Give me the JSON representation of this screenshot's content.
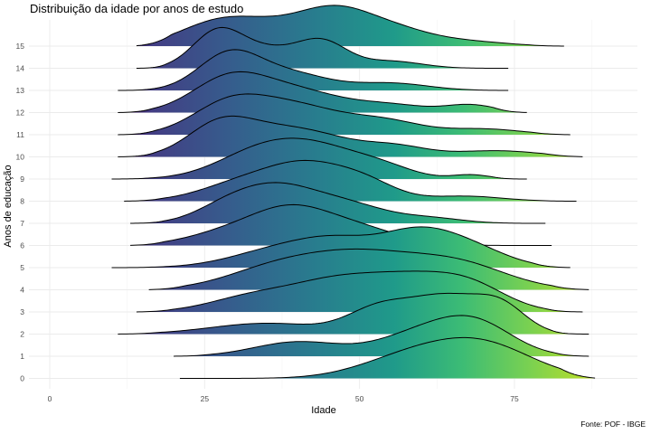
{
  "chart_data": {
    "type": "ridgeline",
    "title": "Distribuição da idade por anos de estudo",
    "xlabel": "Idade",
    "ylabel": "Anos de educação",
    "caption": "Fonte: POF - IBGE",
    "xlim": [
      -4,
      89
    ],
    "x_ticks": [
      0,
      25,
      50,
      75
    ],
    "colormap": "viridis",
    "legend": "none",
    "grid": true,
    "ridges": [
      {
        "category": "0",
        "min": 21,
        "max": 88,
        "peaks": [
          [
            58,
            8,
            0.62
          ],
          [
            70,
            8,
            1.0
          ]
        ]
      },
      {
        "category": "1",
        "min": 20,
        "max": 87,
        "peaks": [
          [
            40,
            7,
            0.45
          ],
          [
            60,
            7,
            0.7
          ],
          [
            69,
            6,
            0.9
          ]
        ]
      },
      {
        "category": "2",
        "min": 11,
        "max": 87,
        "peaks": [
          [
            35,
            9,
            0.28
          ],
          [
            53,
            5,
            0.6
          ],
          [
            64,
            6,
            0.95
          ],
          [
            73,
            4,
            0.6
          ]
        ]
      },
      {
        "category": "3",
        "min": 14,
        "max": 86,
        "peaks": [
          [
            33,
            7,
            0.4
          ],
          [
            46,
            7,
            0.7
          ],
          [
            58,
            7,
            0.75
          ],
          [
            68,
            6,
            0.6
          ]
        ]
      },
      {
        "category": "4",
        "min": 16,
        "max": 87,
        "peaks": [
          [
            36,
            8,
            0.5
          ],
          [
            50,
            9,
            0.9
          ],
          [
            66,
            8,
            0.65
          ]
        ]
      },
      {
        "category": "5",
        "min": 10,
        "max": 84,
        "peaks": [
          [
            38,
            8,
            0.55
          ],
          [
            47,
            6,
            0.5
          ],
          [
            59,
            6,
            0.9
          ],
          [
            68,
            6,
            0.5
          ]
        ]
      },
      {
        "category": "6",
        "min": 13,
        "max": 81,
        "peaks": [
          [
            30,
            7,
            0.45
          ],
          [
            39,
            6,
            0.85
          ],
          [
            49,
            7,
            0.55
          ]
        ]
      },
      {
        "category": "7",
        "min": 13,
        "max": 80,
        "peaks": [
          [
            28,
            5,
            0.35
          ],
          [
            36,
            6,
            0.85
          ],
          [
            47,
            7,
            0.55
          ],
          [
            62,
            5,
            0.12
          ]
        ]
      },
      {
        "category": "8",
        "min": 12,
        "max": 85,
        "peaks": [
          [
            32,
            7,
            0.6
          ],
          [
            42,
            6,
            0.9
          ],
          [
            51,
            5,
            0.5
          ],
          [
            67,
            6,
            0.15
          ]
        ]
      },
      {
        "category": "9",
        "min": 10,
        "max": 77,
        "peaks": [
          [
            34,
            7,
            0.75
          ],
          [
            44,
            7,
            0.75
          ],
          [
            54,
            5,
            0.25
          ],
          [
            68,
            3,
            0.12
          ]
        ]
      },
      {
        "category": "10",
        "min": 11,
        "max": 86,
        "peaks": [
          [
            27,
            5,
            0.75
          ],
          [
            33,
            7,
            0.65
          ],
          [
            43,
            7,
            0.6
          ],
          [
            56,
            5,
            0.3
          ],
          [
            72,
            7,
            0.2
          ]
        ]
      },
      {
        "category": "11",
        "min": 11,
        "max": 84,
        "peaks": [
          [
            29,
            6,
            0.8
          ],
          [
            40,
            7,
            0.7
          ],
          [
            54,
            6,
            0.35
          ],
          [
            70,
            6,
            0.15
          ]
        ]
      },
      {
        "category": "12",
        "min": 11,
        "max": 77,
        "peaks": [
          [
            29,
            6,
            0.9
          ],
          [
            40,
            7,
            0.55
          ],
          [
            55,
            6,
            0.2
          ],
          [
            68,
            4,
            0.2
          ]
        ]
      },
      {
        "category": "13",
        "min": 11,
        "max": 74,
        "peaks": [
          [
            29,
            5,
            1.0
          ],
          [
            39,
            6,
            0.45
          ],
          [
            55,
            6,
            0.2
          ]
        ]
      },
      {
        "category": "14",
        "min": 14,
        "max": 74,
        "peaks": [
          [
            27,
            4,
            0.9
          ],
          [
            35,
            5,
            0.45
          ],
          [
            44,
            4,
            0.65
          ],
          [
            55,
            5,
            0.18
          ]
        ]
      },
      {
        "category": "15",
        "min": 14,
        "max": 83,
        "peaks": [
          [
            26,
            6,
            0.4
          ],
          [
            34,
            7,
            0.45
          ],
          [
            46,
            6,
            0.8
          ],
          [
            56,
            6,
            0.35
          ],
          [
            68,
            6,
            0.1
          ]
        ]
      }
    ]
  }
}
